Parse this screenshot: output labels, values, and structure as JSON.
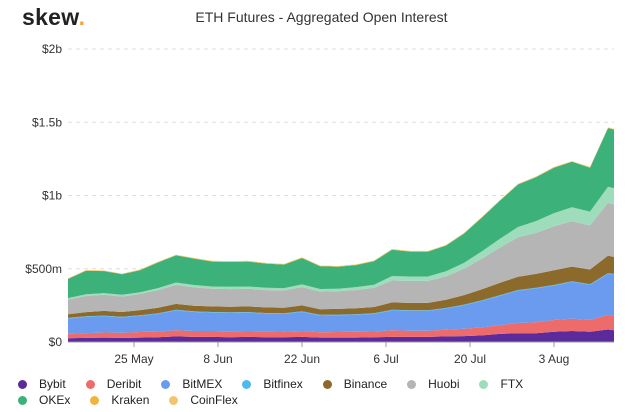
{
  "logo": {
    "text": "skew",
    "dot": "."
  },
  "chart_data": {
    "type": "area",
    "stacked": true,
    "title": "ETH Futures - Aggregated Open Interest",
    "xlabel": "",
    "ylabel": "",
    "ylim": [
      0,
      2000
    ],
    "y_unit": "million USD",
    "y_ticks": [
      {
        "value": 0,
        "label": "$0"
      },
      {
        "value": 500,
        "label": "$500m"
      },
      {
        "value": 1000,
        "label": "$1b"
      },
      {
        "value": 1500,
        "label": "$1.5b"
      },
      {
        "value": 2000,
        "label": "$2b"
      }
    ],
    "x_range": [
      "2020-05-14",
      "2020-08-13"
    ],
    "x_ticks": [
      {
        "date": "2020-05-25",
        "label": "25 May"
      },
      {
        "date": "2020-06-08",
        "label": "8 Jun"
      },
      {
        "date": "2020-06-22",
        "label": "22 Jun"
      },
      {
        "date": "2020-07-06",
        "label": "6 Jul"
      },
      {
        "date": "2020-07-20",
        "label": "20 Jul"
      },
      {
        "date": "2020-08-03",
        "label": "3 Aug"
      }
    ],
    "grid": true,
    "legend_position": "bottom",
    "x": [
      "2020-05-14",
      "2020-05-17",
      "2020-05-20",
      "2020-05-23",
      "2020-05-26",
      "2020-05-29",
      "2020-06-01",
      "2020-06-04",
      "2020-06-07",
      "2020-06-10",
      "2020-06-13",
      "2020-06-16",
      "2020-06-19",
      "2020-06-22",
      "2020-06-25",
      "2020-06-28",
      "2020-07-01",
      "2020-07-04",
      "2020-07-07",
      "2020-07-10",
      "2020-07-13",
      "2020-07-16",
      "2020-07-19",
      "2020-07-22",
      "2020-07-25",
      "2020-07-28",
      "2020-07-31",
      "2020-08-03",
      "2020-08-06",
      "2020-08-09",
      "2020-08-12",
      "2020-08-13"
    ],
    "series": [
      {
        "name": "Bybit",
        "color": "#5b2a9b",
        "values": [
          25,
          28,
          30,
          28,
          30,
          33,
          38,
          35,
          35,
          33,
          35,
          33,
          33,
          35,
          30,
          30,
          30,
          32,
          35,
          35,
          35,
          38,
          40,
          45,
          55,
          60,
          60,
          70,
          75,
          70,
          85,
          80
        ]
      },
      {
        "name": "Deribit",
        "color": "#ee6b6b",
        "values": [
          30,
          33,
          35,
          35,
          38,
          38,
          42,
          40,
          40,
          40,
          40,
          40,
          38,
          40,
          36,
          38,
          40,
          40,
          45,
          42,
          42,
          45,
          50,
          55,
          60,
          70,
          75,
          80,
          85,
          80,
          100,
          100
        ]
      },
      {
        "name": "BitMEX",
        "color": "#6b9bee",
        "values": [
          105,
          110,
          110,
          105,
          110,
          120,
          135,
          130,
          125,
          125,
          125,
          120,
          120,
          130,
          115,
          115,
          115,
          120,
          135,
          135,
          135,
          145,
          160,
          180,
          200,
          220,
          230,
          235,
          250,
          240,
          280,
          280
        ]
      },
      {
        "name": "Bitfinex",
        "color": "#4fb8ee",
        "values": [
          5,
          5,
          5,
          5,
          5,
          5,
          5,
          5,
          5,
          5,
          5,
          5,
          5,
          5,
          5,
          5,
          5,
          5,
          5,
          5,
          5,
          5,
          5,
          5,
          5,
          5,
          5,
          5,
          5,
          5,
          5,
          5
        ]
      },
      {
        "name": "Binance",
        "color": "#8c6a2c",
        "values": [
          25,
          28,
          32,
          32,
          35,
          38,
          40,
          38,
          38,
          38,
          38,
          38,
          38,
          40,
          38,
          38,
          40,
          42,
          50,
          50,
          50,
          55,
          65,
          75,
          85,
          90,
          95,
          100,
          100,
          100,
          120,
          115
        ]
      },
      {
        "name": "Huobi",
        "color": "#b5b5b5",
        "values": [
          100,
          110,
          110,
          105,
          110,
          120,
          130,
          125,
          120,
          120,
          120,
          118,
          118,
          125,
          120,
          120,
          125,
          130,
          150,
          150,
          150,
          160,
          180,
          210,
          240,
          270,
          280,
          300,
          310,
          300,
          360,
          360
        ]
      },
      {
        "name": "FTX",
        "color": "#9fdcbb",
        "values": [
          10,
          12,
          12,
          12,
          12,
          14,
          16,
          16,
          16,
          16,
          16,
          16,
          16,
          18,
          18,
          18,
          20,
          22,
          30,
          30,
          30,
          35,
          40,
          50,
          60,
          70,
          80,
          90,
          95,
          95,
          110,
          110
        ]
      },
      {
        "name": "OKEx",
        "color": "#3cb179",
        "values": [
          130,
          160,
          150,
          140,
          150,
          175,
          185,
          180,
          170,
          170,
          170,
          165,
          160,
          180,
          155,
          150,
          150,
          160,
          180,
          170,
          170,
          175,
          200,
          230,
          260,
          290,
          300,
          310,
          310,
          300,
          400,
          400
        ]
      },
      {
        "name": "Kraken",
        "color": "#efb43e",
        "values": [
          3,
          3,
          3,
          3,
          3,
          3,
          3,
          3,
          3,
          3,
          3,
          3,
          3,
          3,
          3,
          3,
          3,
          3,
          3,
          3,
          3,
          3,
          3,
          3,
          3,
          3,
          3,
          3,
          3,
          3,
          3,
          3
        ]
      },
      {
        "name": "CoinFlex",
        "color": "#f3c56b",
        "values": [
          2,
          2,
          2,
          2,
          2,
          2,
          2,
          2,
          2,
          2,
          2,
          2,
          2,
          2,
          2,
          2,
          2,
          2,
          2,
          2,
          2,
          2,
          2,
          2,
          2,
          2,
          2,
          2,
          2,
          2,
          2,
          2
        ]
      }
    ]
  }
}
